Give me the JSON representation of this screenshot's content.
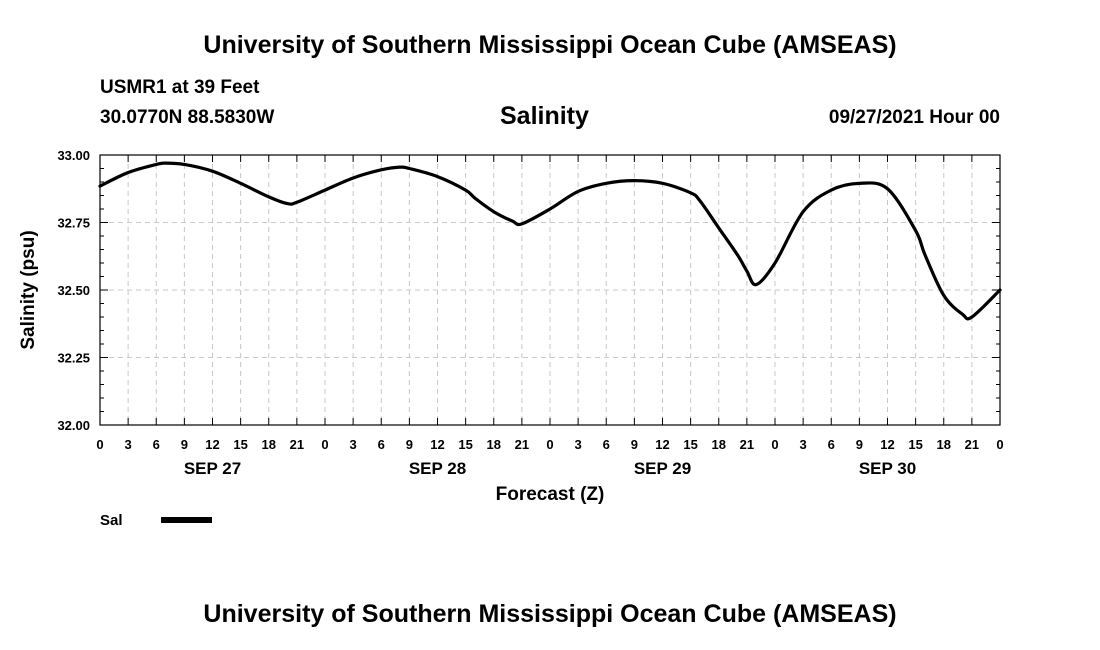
{
  "header": {
    "title": "University of Southern Mississippi Ocean Cube (AMSEAS)",
    "station": "USMR1 at 39 Feet",
    "coords": "30.0770N  88.5830W",
    "datetime": "09/27/2021 Hour 00"
  },
  "footer": {
    "title": "University of Southern Mississippi Ocean Cube (AMSEAS)"
  },
  "chart_data": {
    "type": "line",
    "title": "Salinity",
    "xlabel": "Forecast (Z)",
    "ylabel": "Salinity (psu)",
    "ylim": [
      32.0,
      33.0
    ],
    "yticks": [
      "32.00",
      "32.25",
      "32.50",
      "32.75",
      "33.00"
    ],
    "xlim": [
      0,
      96
    ],
    "x_tick_labels": [
      "0",
      "3",
      "6",
      "9",
      "12",
      "15",
      "18",
      "21",
      "0",
      "3",
      "6",
      "9",
      "12",
      "15",
      "18",
      "21",
      "0",
      "3",
      "6",
      "9",
      "12",
      "15",
      "18",
      "21",
      "0",
      "3",
      "6",
      "9",
      "12",
      "15",
      "18",
      "21",
      "0"
    ],
    "date_labels": [
      {
        "label": "SEP 27",
        "hour": 12
      },
      {
        "label": "SEP 28",
        "hour": 36
      },
      {
        "label": "SEP 29",
        "hour": 60
      },
      {
        "label": "SEP 30",
        "hour": 84
      }
    ],
    "grid": true,
    "legend_position": "bottom-left",
    "series": [
      {
        "name": "Sal",
        "color": "#000000",
        "x": [
          0,
          3,
          6,
          7,
          9,
          12,
          15,
          18,
          20,
          21,
          24,
          27,
          30,
          32,
          33,
          36,
          39,
          40,
          42,
          44,
          45,
          48,
          51,
          54,
          57,
          60,
          63,
          64,
          66,
          68,
          69,
          70,
          72,
          75,
          78,
          81,
          84,
          87,
          88,
          90,
          92,
          93,
          96
        ],
        "y": [
          32.885,
          32.935,
          32.965,
          32.97,
          32.965,
          32.94,
          32.895,
          32.845,
          32.82,
          32.825,
          32.87,
          32.915,
          32.945,
          32.955,
          32.95,
          32.92,
          32.87,
          32.84,
          32.79,
          32.755,
          32.745,
          32.8,
          32.865,
          32.895,
          32.905,
          32.895,
          32.86,
          32.83,
          32.73,
          32.63,
          32.57,
          32.52,
          32.6,
          32.79,
          32.87,
          32.895,
          32.875,
          32.72,
          32.63,
          32.48,
          32.41,
          32.4,
          32.5
        ]
      }
    ]
  }
}
